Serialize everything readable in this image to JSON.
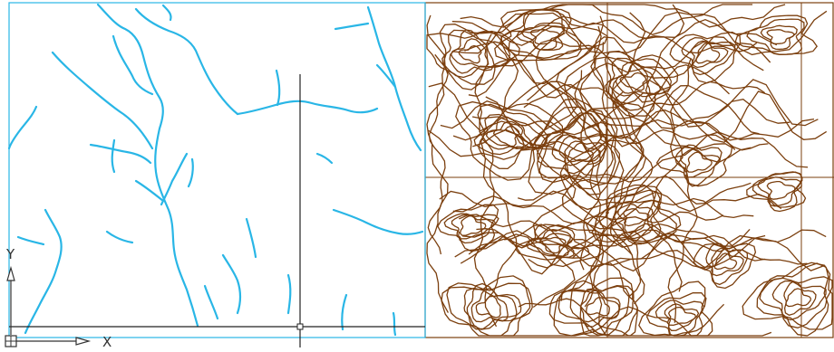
{
  "ucs": {
    "x_label": "X",
    "y_label": "Y",
    "icon": "ucs-axis-icon"
  },
  "drawing": {
    "hydrology_layer_color": "#29B6E6",
    "contour_layer_color": "#7B3F0E",
    "selection_frame_color": "#29B6E6",
    "crosshair_color": "#222222",
    "background": "#ffffff"
  }
}
